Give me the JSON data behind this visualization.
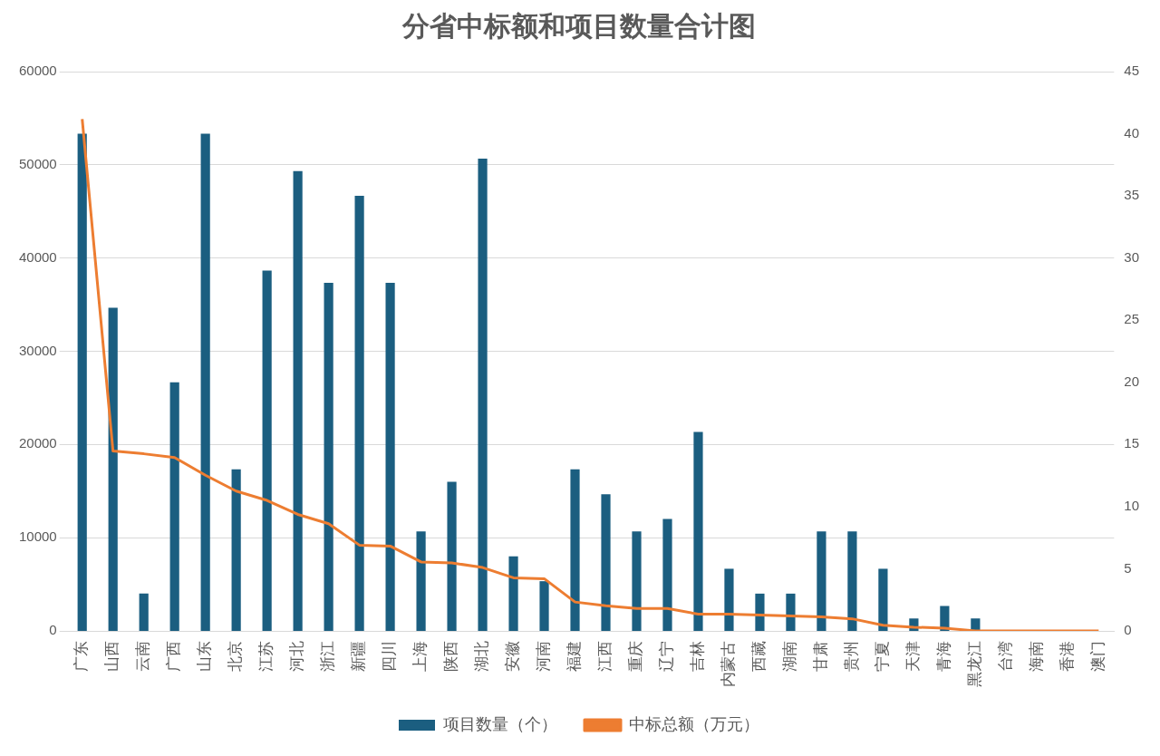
{
  "chart_data": {
    "type": "bar",
    "title": "分省中标额和项目数量合计图",
    "categories": [
      "广东",
      "山西",
      "云南",
      "广西",
      "山东",
      "北京",
      "江苏",
      "河北",
      "浙江",
      "新疆",
      "四川",
      "上海",
      "陕西",
      "湖北",
      "安徽",
      "河南",
      "福建",
      "江西",
      "重庆",
      "辽宁",
      "吉林",
      "内蒙古",
      "西藏",
      "湖南",
      "甘肃",
      "贵州",
      "宁夏",
      "天津",
      "青海",
      "黑龙江",
      "台湾",
      "海南",
      "香港",
      "澳门"
    ],
    "series": [
      {
        "name": "项目数量（个）",
        "axis": "y2",
        "color": "#1b5e80",
        "values": [
          40,
          26,
          3,
          20,
          40,
          13,
          29,
          37,
          28,
          35,
          28,
          8,
          12,
          38,
          6,
          4,
          13,
          11,
          8,
          9,
          16,
          5,
          3,
          3,
          8,
          8,
          5,
          1,
          2,
          1,
          0,
          0,
          0,
          0
        ]
      },
      {
        "name": "中标总额（万元）",
        "type": "line",
        "axis": "y",
        "color": "#ed7d31",
        "values": [
          54900,
          19300,
          19000,
          18600,
          16700,
          15000,
          14000,
          12500,
          11500,
          9200,
          9100,
          7400,
          7300,
          6800,
          5700,
          5600,
          3100,
          2700,
          2400,
          2400,
          1800,
          1800,
          1700,
          1600,
          1500,
          1300,
          600,
          400,
          300,
          0,
          0,
          0,
          0,
          0
        ]
      }
    ],
    "ylim": [
      0,
      60000
    ],
    "yticks": [
      0,
      10000,
      20000,
      30000,
      40000,
      50000,
      60000
    ],
    "y2lim": [
      0,
      45
    ],
    "y2ticks": [
      0,
      5,
      10,
      15,
      20,
      25,
      30,
      35,
      40,
      45
    ],
    "grid": "y",
    "legend": "bottom",
    "marker": "none",
    "line_style": "solid"
  }
}
